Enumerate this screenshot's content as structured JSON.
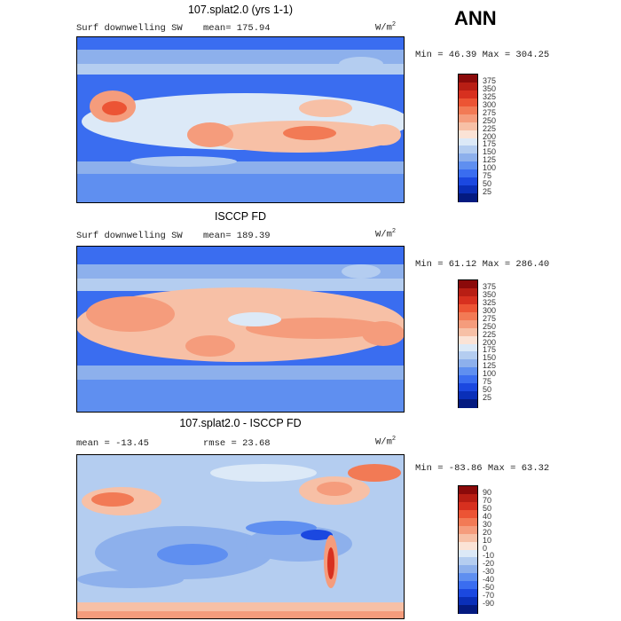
{
  "header": {
    "season": "ANN"
  },
  "panels": [
    {
      "title": "107.splat2.0 (yrs 1-1)",
      "left_label": "Surf downwelling SW",
      "stat_label": "mean=  175.94",
      "units": "W/m",
      "units_sup": "2",
      "minmax": "Min =  46.39 Max = 304.25",
      "colorbar": {
        "labels": [
          "375",
          "350",
          "325",
          "300",
          "275",
          "250",
          "225",
          "200",
          "175",
          "150",
          "125",
          "100",
          "75",
          "50",
          "25"
        ],
        "colors": [
          "#8b0a0a",
          "#b81e14",
          "#d7301f",
          "#ec5434",
          "#f27a55",
          "#f59c7c",
          "#f7c0a6",
          "#fbe3d6",
          "#dce9f7",
          "#b4cdf0",
          "#8db0ec",
          "#5f8ff0",
          "#3a6df0",
          "#1b48e0",
          "#0a2fb8",
          "#041a80"
        ]
      }
    },
    {
      "title": "ISCCP FD",
      "left_label": "Surf downwelling SW",
      "stat_label": "mean=  189.39",
      "units": "W/m",
      "units_sup": "2",
      "minmax": "Min =  61.12 Max = 286.40",
      "colorbar": {
        "labels": [
          "375",
          "350",
          "325",
          "300",
          "275",
          "250",
          "225",
          "200",
          "175",
          "150",
          "125",
          "100",
          "75",
          "50",
          "25"
        ],
        "colors": [
          "#8b0a0a",
          "#b81e14",
          "#d7301f",
          "#ec5434",
          "#f27a55",
          "#f59c7c",
          "#f7c0a6",
          "#fbe3d6",
          "#dce9f7",
          "#b4cdf0",
          "#8db0ec",
          "#5f8ff0",
          "#3a6df0",
          "#1b48e0",
          "#0a2fb8",
          "#041a80"
        ]
      }
    },
    {
      "title": "107.splat2.0 - ISCCP FD",
      "left_label": "mean = -13.45",
      "stat_label": "rmse =  23.68",
      "units": "W/m",
      "units_sup": "2",
      "minmax": "Min = -83.86 Max =  63.32",
      "colorbar": {
        "labels": [
          "90",
          "70",
          "50",
          "40",
          "30",
          "20",
          "10",
          "0",
          "-10",
          "-20",
          "-30",
          "-40",
          "-50",
          "-70",
          "-90"
        ],
        "colors": [
          "#8b0a0a",
          "#b81e14",
          "#d7301f",
          "#ec5434",
          "#f27a55",
          "#f59c7c",
          "#f7c0a6",
          "#fbe3d6",
          "#dce9f7",
          "#b4cdf0",
          "#8db0ec",
          "#5f8ff0",
          "#3a6df0",
          "#1b48e0",
          "#0a2fb8",
          "#041a80"
        ]
      }
    }
  ]
}
